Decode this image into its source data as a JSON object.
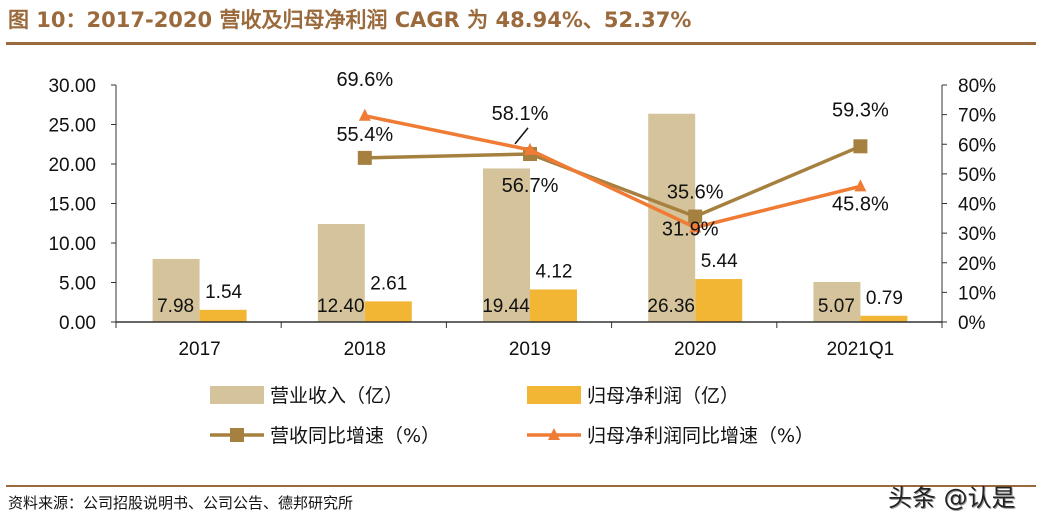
{
  "title": "图 10：2017-2020 营收及归母净利润 CAGR 为 48.94%、52.37%",
  "source": "资料来源：公司招股说明书、公司公告、德邦研究所",
  "watermark": "头条 @认是",
  "colors": {
    "revenue_bar": "#D5C49B",
    "profit_bar": "#F3B634",
    "revenue_line": "#A5803F",
    "profit_line": "#EF7B35",
    "title": "#9B6A3C"
  },
  "chart_data": {
    "type": "bar+line",
    "categories": [
      "2017",
      "2018",
      "2019",
      "2020",
      "2021Q1"
    ],
    "y_left": {
      "ylim": [
        0,
        30
      ],
      "ticks": [
        "0.00",
        "5.00",
        "10.00",
        "15.00",
        "20.00",
        "25.00",
        "30.00"
      ]
    },
    "y_right": {
      "ylim": [
        0,
        80
      ],
      "ticks": [
        "0%",
        "10%",
        "20%",
        "30%",
        "40%",
        "50%",
        "60%",
        "70%",
        "80%"
      ]
    },
    "grid": false,
    "legend_placement": "bottom",
    "bar_series": [
      {
        "name": "营业收入（亿）",
        "values": [
          7.98,
          12.4,
          19.44,
          26.36,
          5.07
        ],
        "labels": [
          "7.98",
          "12.40",
          "19.44",
          "26.36",
          "5.07"
        ]
      },
      {
        "name": "归母净利润（亿）",
        "values": [
          1.54,
          2.61,
          4.12,
          5.44,
          0.79
        ],
        "labels": [
          "1.54",
          "2.61",
          "4.12",
          "5.44",
          "0.79"
        ]
      }
    ],
    "line_series": [
      {
        "name": "营收同比增速（%）",
        "marker": "square",
        "values": [
          null,
          55.4,
          56.7,
          35.6,
          59.3
        ],
        "labels": [
          "",
          "55.4%",
          "56.7%",
          "35.6%",
          "59.3%"
        ]
      },
      {
        "name": "归母净利润同比增速（%）",
        "marker": "triangle",
        "values": [
          null,
          69.6,
          58.1,
          31.9,
          45.8
        ],
        "labels": [
          "",
          "69.6%",
          "58.1%",
          "31.9%",
          "45.8%"
        ]
      }
    ]
  }
}
